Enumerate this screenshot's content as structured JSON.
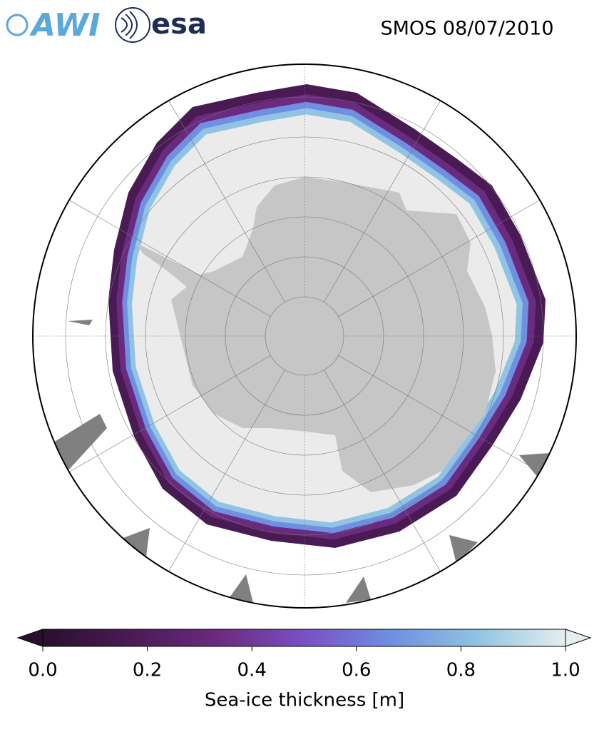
{
  "header": {
    "logos": [
      "AWI",
      "esa"
    ],
    "title": "SMOS 08/07/2010"
  },
  "colorbar": {
    "label": "Sea-ice thickness [m]",
    "lim": [
      0,
      1
    ],
    "ticks": [
      {
        "value": 0,
        "label": "0.0"
      },
      {
        "value": 0.2,
        "label": "0.2"
      },
      {
        "value": 0.4,
        "label": "0.4"
      },
      {
        "value": 0.6,
        "label": "0.6"
      },
      {
        "value": 0.8,
        "label": "0.8"
      },
      {
        "value": 1,
        "label": "1.0"
      }
    ],
    "colors": [
      "#2a0f2e",
      "#4a1a55",
      "#6a2a7e",
      "#7a4fc4",
      "#6e8fe2",
      "#90c4e2",
      "#e6eeee"
    ]
  }
}
